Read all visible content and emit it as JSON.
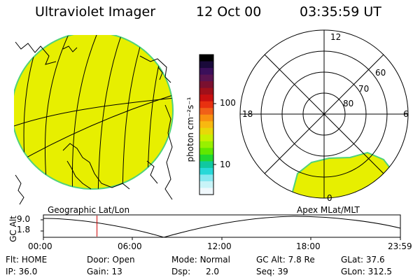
{
  "header": {
    "instrument": "Ultraviolet Imager",
    "date": "12 Oct 00",
    "time": "03:35:59 UT"
  },
  "geo_panel": {
    "caption": "Geographic Lat/Lon",
    "fill_color": "#e7ef00",
    "edge_color": "#4fd27a"
  },
  "colorbar": {
    "unit_label": "photon cm⁻²s⁻¹",
    "tick_labels": [
      "100",
      "10"
    ],
    "colors": [
      "#000000",
      "#1a0a3a",
      "#3b0f5a",
      "#5a1450",
      "#7a1030",
      "#a0101a",
      "#c81010",
      "#e83010",
      "#f06018",
      "#f89010",
      "#f8b810",
      "#e8d808",
      "#c8f000",
      "#98f000",
      "#60e800",
      "#20d830",
      "#10c8a0",
      "#28d8d8",
      "#88e8f0",
      "#c8f4f8",
      "#f0f8fc"
    ]
  },
  "polar_panel": {
    "caption": "Apex MLat/MLT",
    "mlt_labels": {
      "top": "12",
      "left": "18",
      "right": "6",
      "bottom": "0"
    },
    "lat_labels": [
      "60",
      "70",
      "80"
    ]
  },
  "altitude_plot": {
    "ylabel": "GC Alt",
    "y_ticks": [
      "9.0",
      "1.8"
    ],
    "x_ticks": [
      "00:00",
      "06:00",
      "12:00",
      "18:00",
      "23:59"
    ],
    "marker_time_hours": 3.6
  },
  "status": {
    "flt_label": "Flt:",
    "flt": "HOME",
    "door_label": "Door:",
    "door": "Open",
    "mode_label": "Mode:",
    "mode": "Normal",
    "gcalt_label": "GC Alt:",
    "gcalt": "7.8 Re",
    "glat_label": "GLat:",
    "glat": "37.6",
    "ip_label": "IP:",
    "ip": "36.0",
    "gain_label": "Gain:",
    "gain": "13",
    "dsp_label": "Dsp:",
    "dsp": "2.0",
    "seq_label": "Seq:",
    "seq": "39",
    "glon_label": "GLon:",
    "glon": "312.5"
  }
}
